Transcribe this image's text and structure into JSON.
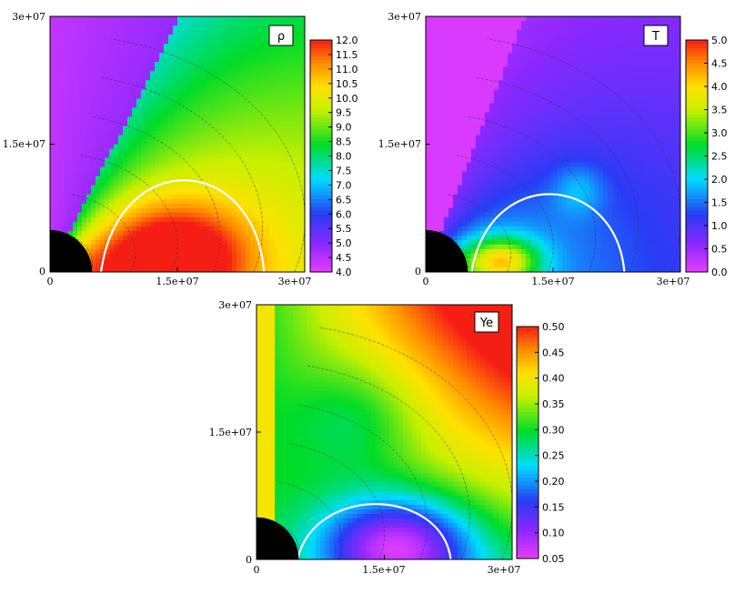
{
  "chart_data": [
    {
      "type": "heatmap",
      "variable_label": "ρ",
      "x_ticks": [
        "0",
        "1.5e+07",
        "3e+07"
      ],
      "y_ticks": [
        "0",
        "1.5e+07",
        "3e+07"
      ],
      "xlim": [
        0,
        30000000
      ],
      "ylim": [
        0,
        30000000
      ],
      "colorbar": {
        "min": 4.0,
        "max": 12.0,
        "ticks": [
          "4.0",
          "4.5",
          "5.0",
          "5.5",
          "6.0",
          "6.5",
          "7.0",
          "7.5",
          "8.0",
          "8.5",
          "9.0",
          "9.5",
          "10.0",
          "10.5",
          "11.0",
          "11.5",
          "12.0"
        ]
      },
      "contour_levels": [
        4.5,
        5.0,
        5.5,
        6.0,
        6.5,
        7.0,
        7.5,
        8.0,
        8.5,
        9.0,
        9.5,
        10.0,
        10.5,
        11.0,
        11.5
      ],
      "highlight_contour": "white"
    },
    {
      "type": "heatmap",
      "variable_label": "T",
      "x_ticks": [
        "0",
        "1.5e+07",
        "3e+07"
      ],
      "y_ticks": [
        "0",
        "1.5e+07",
        "3e+07"
      ],
      "xlim": [
        0,
        30000000
      ],
      "ylim": [
        0,
        30000000
      ],
      "colorbar": {
        "min": 0.0,
        "max": 5.0,
        "ticks": [
          "0.0",
          "0.5",
          "1.0",
          "1.5",
          "2.0",
          "2.5",
          "3.0",
          "3.5",
          "4.0",
          "4.5",
          "5.0"
        ]
      },
      "contour_levels": [
        0.5,
        1.0,
        1.5,
        2.0,
        2.5,
        3.0
      ],
      "highlight_contour": "white"
    },
    {
      "type": "heatmap",
      "variable_label": "Ye",
      "x_ticks": [
        "0",
        "1.5e+07",
        "3e+07"
      ],
      "y_ticks": [
        "0",
        "1.5e+07",
        "3e+07"
      ],
      "xlim": [
        0,
        30000000
      ],
      "ylim": [
        0,
        30000000
      ],
      "colorbar": {
        "min": 0.05,
        "max": 0.5,
        "ticks": [
          "0.05",
          "0.10",
          "0.15",
          "0.20",
          "0.25",
          "0.30",
          "0.35",
          "0.40",
          "0.45",
          "0.50"
        ]
      },
      "contour_levels": [
        0.1,
        0.15,
        0.2,
        0.25,
        0.3,
        0.35,
        0.4,
        0.45
      ],
      "highlight_contour": "white"
    }
  ]
}
